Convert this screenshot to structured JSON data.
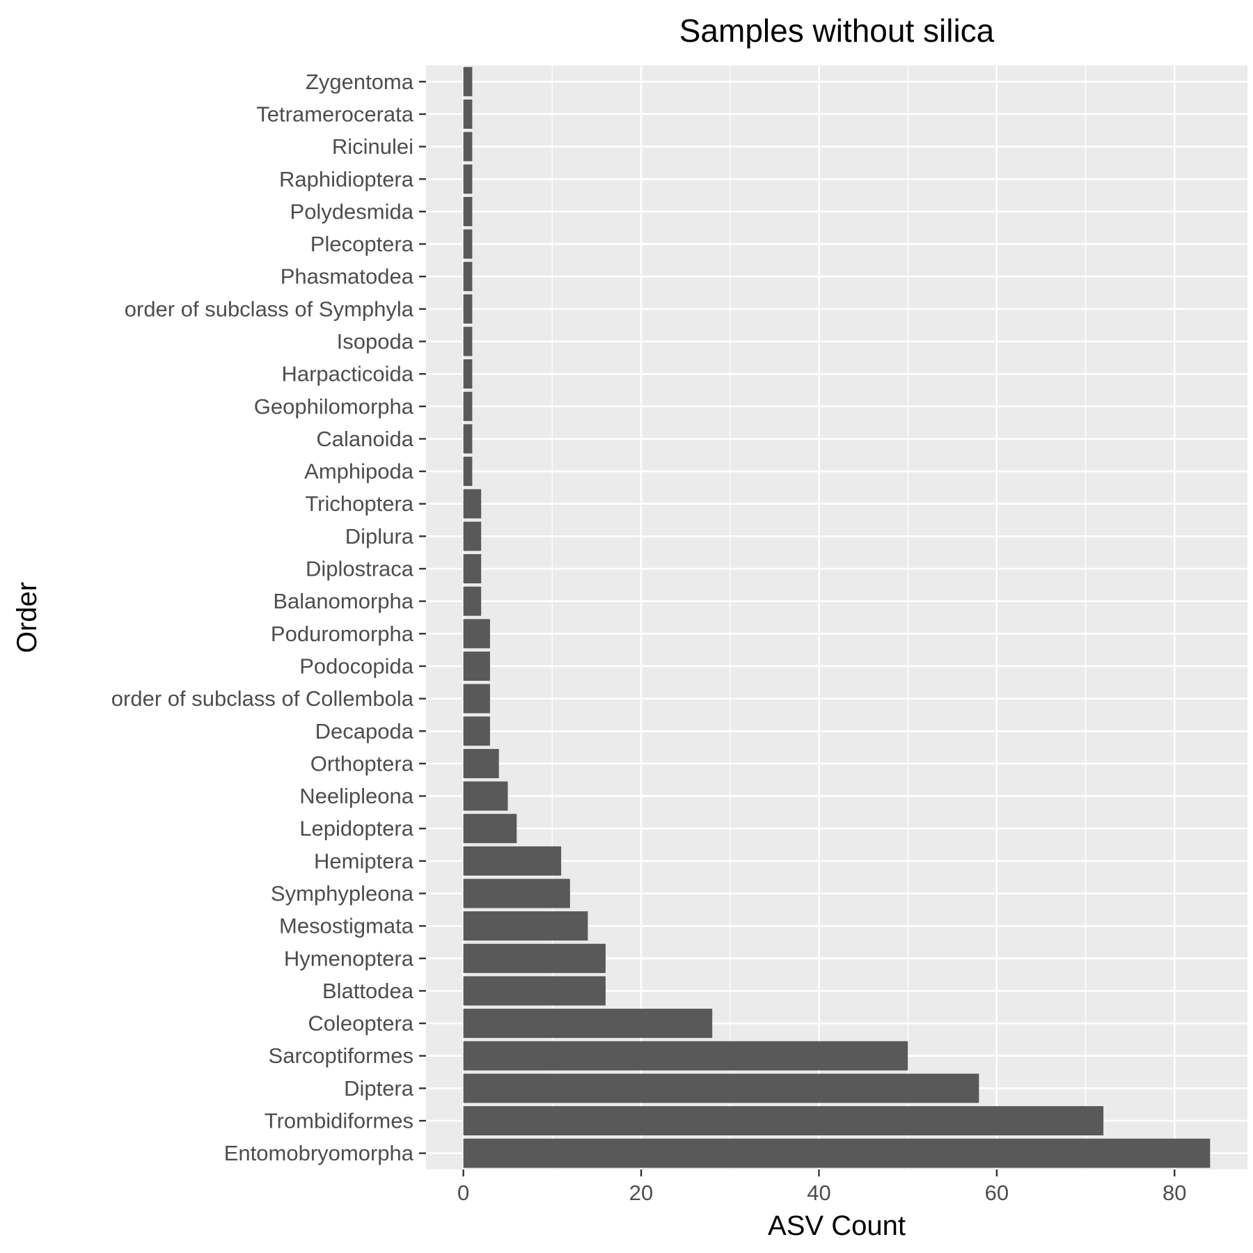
{
  "chart_data": {
    "type": "bar",
    "orientation": "horizontal",
    "title": "Samples without silica",
    "xlabel": "ASV Count",
    "ylabel": "Order",
    "xlim": [
      -4.2,
      88.2
    ],
    "xticks": [
      0,
      20,
      40,
      60,
      80
    ],
    "grid": true,
    "legend": "none",
    "colors": {
      "bar": "#595959",
      "panel": "#ebebeb",
      "grid": "#ffffff",
      "tick_text": "#4d4d4d",
      "tick_mark": "#333333"
    },
    "categories": [
      "Zygentoma",
      "Tetramerocerata",
      "Ricinulei",
      "Raphidioptera",
      "Polydesmida",
      "Plecoptera",
      "Phasmatodea",
      "order of subclass of Symphyla",
      "Isopoda",
      "Harpacticoida",
      "Geophilomorpha",
      "Calanoida",
      "Amphipoda",
      "Trichoptera",
      "Diplura",
      "Diplostraca",
      "Balanomorpha",
      "Poduromorpha",
      "Podocopida",
      "order of subclass of Collembola",
      "Decapoda",
      "Orthoptera",
      "Neelipleona",
      "Lepidoptera",
      "Hemiptera",
      "Symphypleona",
      "Mesostigmata",
      "Hymenoptera",
      "Blattodea",
      "Coleoptera",
      "Sarcoptiformes",
      "Diptera",
      "Trombidiformes",
      "Entomobryomorpha"
    ],
    "values": [
      1,
      1,
      1,
      1,
      1,
      1,
      1,
      1,
      1,
      1,
      1,
      1,
      1,
      2,
      2,
      2,
      2,
      3,
      3,
      3,
      3,
      4,
      5,
      6,
      11,
      12,
      14,
      16,
      16,
      28,
      50,
      58,
      72,
      84
    ]
  }
}
